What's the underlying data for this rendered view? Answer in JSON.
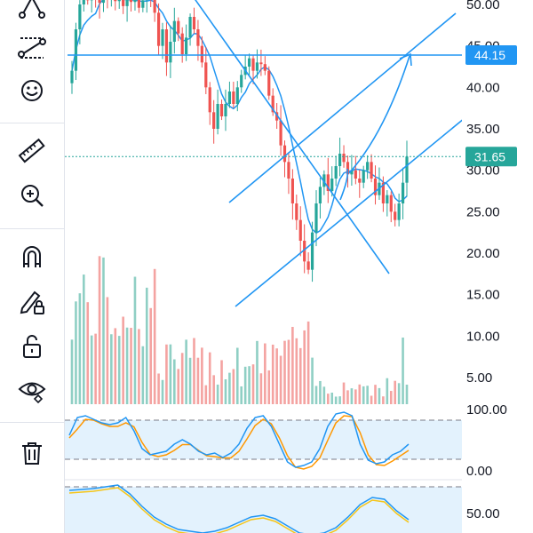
{
  "toolbar": {
    "tools": [
      {
        "name": "fib-tool-icon"
      },
      {
        "name": "pattern-tool-icon"
      },
      {
        "name": "emoji-icon"
      },
      {
        "name": "ruler-icon"
      },
      {
        "name": "zoom-in-icon"
      },
      {
        "name": "magnet-icon"
      },
      {
        "name": "lock-drawing-icon"
      },
      {
        "name": "unlock-icon"
      },
      {
        "name": "eye-icon"
      },
      {
        "name": "trash-icon"
      }
    ]
  },
  "price_axis": {
    "labels": [
      "50.00",
      "45.00",
      "40.00",
      "35.00",
      "30.00",
      "25.00",
      "20.00",
      "15.00",
      "10.00",
      "5.00"
    ]
  },
  "tags": {
    "horizontal_line": {
      "text": "44.15",
      "color": "#2196f3"
    },
    "last_price": {
      "text": "31.65",
      "color": "#26a69a"
    }
  },
  "oscillator1": {
    "labels": [
      "100.00",
      "0.00"
    ],
    "fast_color": "#2196f3",
    "slow_color": "#ff9800"
  },
  "oscillator2": {
    "labels": [
      "50.00"
    ],
    "fast_color": "#2196f3",
    "slow_color": "#f5c518"
  },
  "colors": {
    "up": "#26a69a",
    "down": "#ef5350",
    "volume_up": "#8fcfc4",
    "volume_down": "#f4a3a1",
    "drawing": "#2196f3",
    "ma": "#2196f3"
  },
  "chart_data": {
    "type": "candlestick",
    "y_axis_ticks": [
      50,
      45,
      40,
      35,
      30,
      25,
      20,
      15,
      10,
      5
    ],
    "ylim": [
      3,
      51
    ],
    "last_price": 31.65,
    "horizontal_line": 44.15
  }
}
